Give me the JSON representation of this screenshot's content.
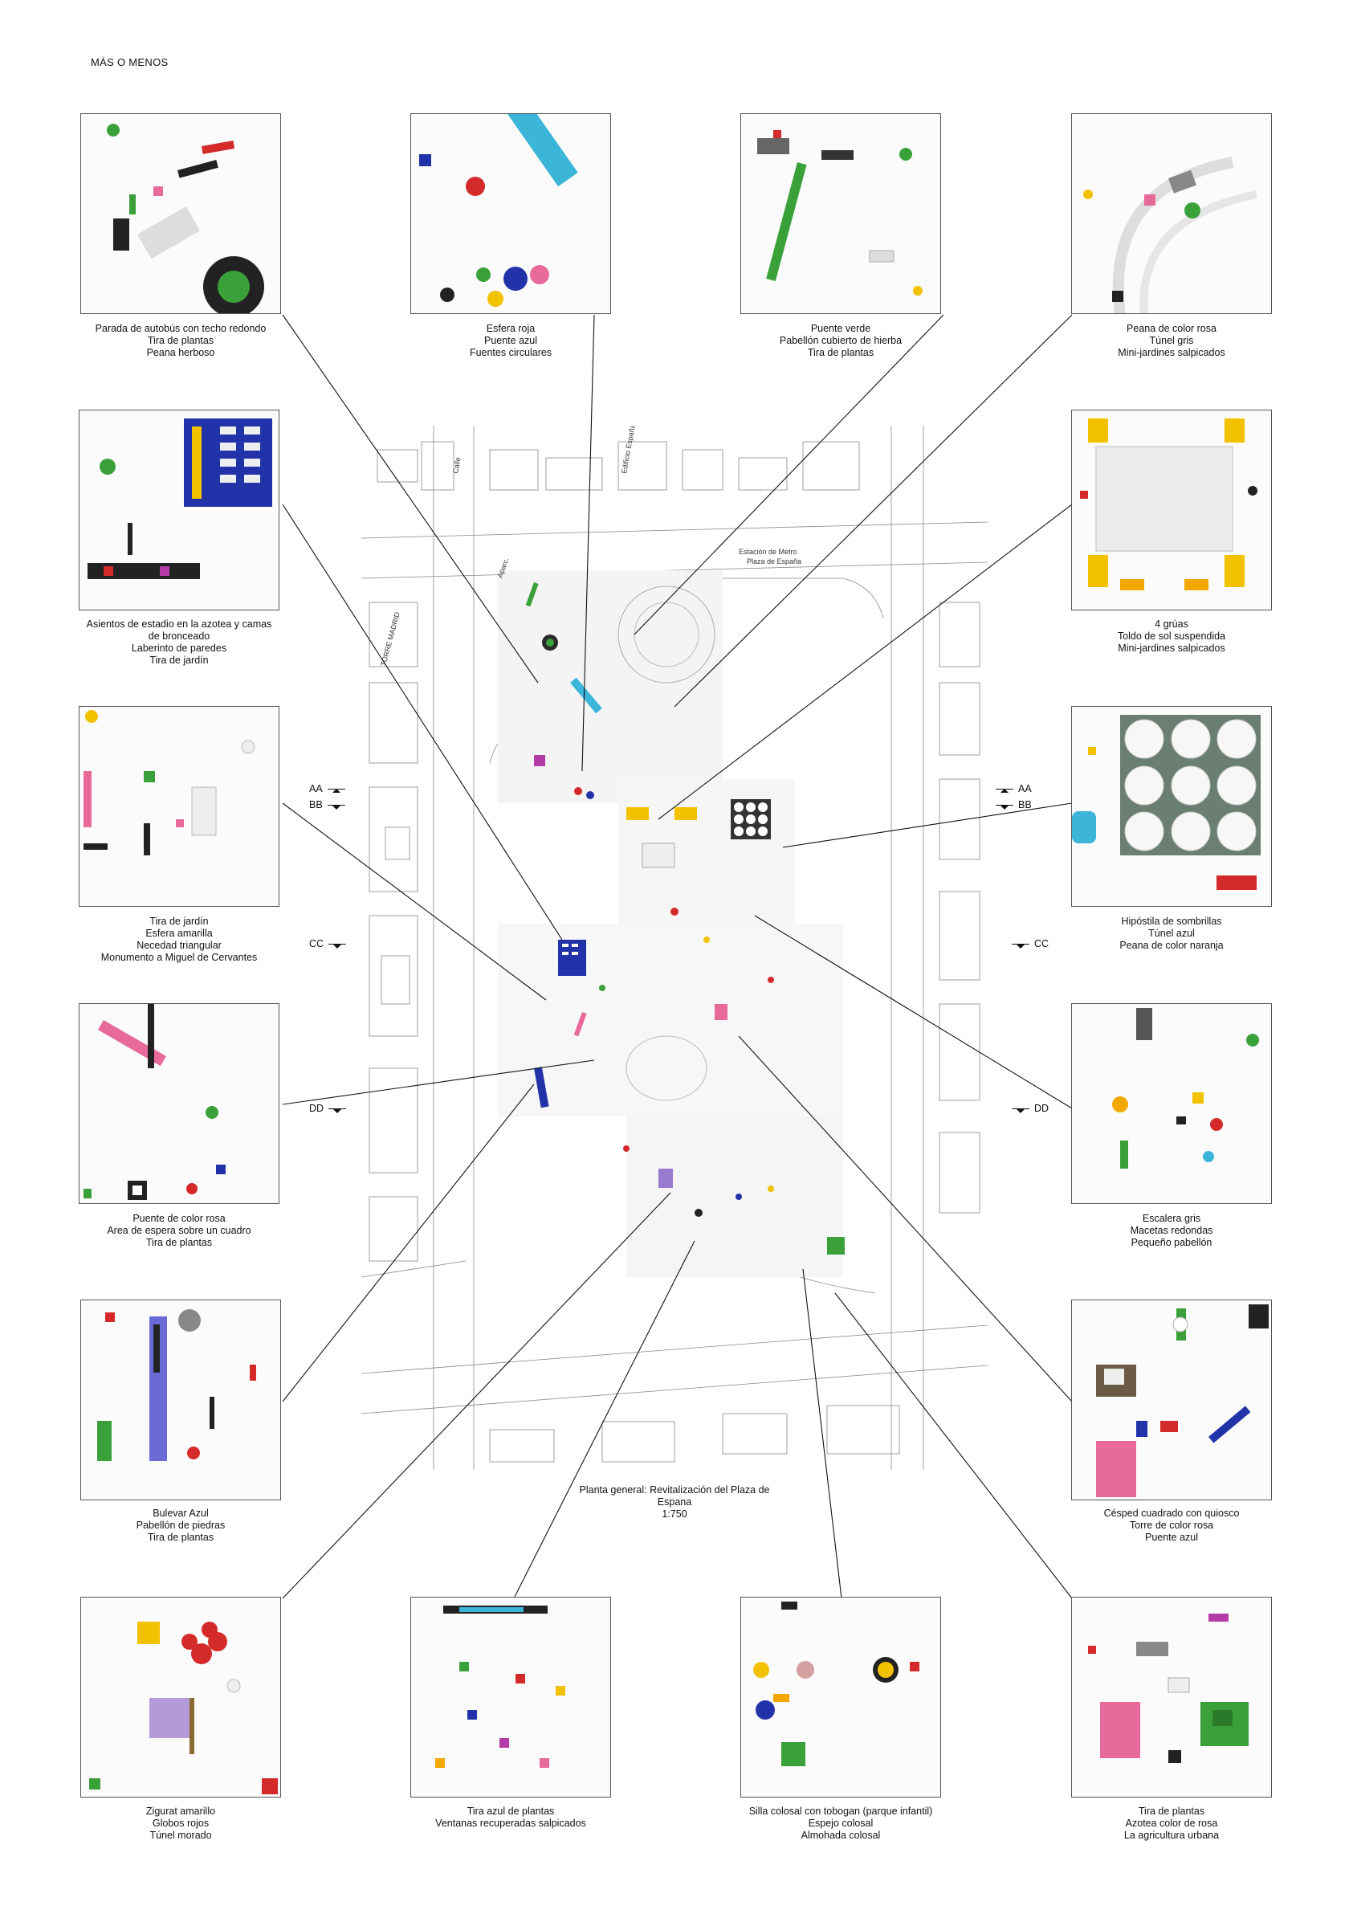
{
  "header": {
    "title": "MÁS O MENOS"
  },
  "plan": {
    "caption_lines": [
      "Planta general: Revitalización del Plaza de",
      "Espana",
      "1:750"
    ],
    "street_labels": [
      "Calle",
      "Edificio España",
      "Aparc.",
      "TORRE MADRID",
      "Estación de Metro",
      "Plaza de España"
    ]
  },
  "sections": [
    {
      "label": "AA",
      "dir": "up"
    },
    {
      "label": "BB",
      "dir": "down"
    },
    {
      "label": "CC",
      "dir": "down"
    },
    {
      "label": "DD",
      "dir": "down"
    }
  ],
  "panels": [
    {
      "id": "p1",
      "lines": [
        "Parada de autobús con techo redondo",
        "Tira de plantas",
        "Peana herboso"
      ]
    },
    {
      "id": "p2",
      "lines": [
        "Esfera roja",
        "Puente azul",
        "Fuentes circulares"
      ]
    },
    {
      "id": "p3",
      "lines": [
        "Puente verde",
        "Pabellón cubierto de hierba",
        "Tira de plantas"
      ]
    },
    {
      "id": "p4",
      "lines": [
        "Peana de color rosa",
        "Túnel gris",
        "Mini-jardines salpicados"
      ]
    },
    {
      "id": "p5",
      "lines": [
        "Asientos de estadio en la azotea y camas",
        "de bronceado",
        "Laberinto de paredes",
        "Tira de jardín"
      ]
    },
    {
      "id": "p6",
      "lines": [
        "4 grúas",
        "Toldo de sol suspendida",
        "Mini-jardines salpicados"
      ]
    },
    {
      "id": "p7",
      "lines": [
        "Tira de jardín",
        "Esfera amarilla",
        "Necedad triangular",
        "Monumento a Miguel de Cervantes"
      ]
    },
    {
      "id": "p8",
      "lines": [
        "Hipóstila de sombrillas",
        "Túnel azul",
        "Peana de color naranja"
      ]
    },
    {
      "id": "p9",
      "lines": [
        "Puente de color rosa",
        "Area de espera sobre un cuadro",
        "Tira de plantas"
      ]
    },
    {
      "id": "p10",
      "lines": [
        "Escalera gris",
        "Macetas redondas",
        "Pequeño pabellón"
      ]
    },
    {
      "id": "p11",
      "lines": [
        "Bulevar Azul",
        "Pabellón de piedras",
        "Tira de plantas"
      ]
    },
    {
      "id": "p12",
      "lines": [
        "Césped cuadrado con quiosco",
        "Torre de color rosa",
        "Puente azul"
      ]
    },
    {
      "id": "p13",
      "lines": [
        "Zigurat amarillo",
        "Globos rojos",
        "Túnel morado"
      ]
    },
    {
      "id": "p14",
      "lines": [
        "Tira azul de plantas",
        "Ventanas recuperadas salpicados"
      ]
    },
    {
      "id": "p15",
      "lines": [
        "Silla colosal con tobogan (parque infantil)",
        "Espejo colosal",
        "Almohada colosal"
      ]
    },
    {
      "id": "p16",
      "lines": [
        "Tira de plantas",
        "Azotea color de rosa",
        "La agricultura urbana"
      ]
    }
  ],
  "colors": {
    "line": "#111111",
    "frame": "#555555",
    "blue": "#2233aa",
    "green": "#3aa13a",
    "red": "#d42a2a",
    "yellow": "#f2c200",
    "pink": "#e86a9a",
    "cyan": "#3bb6d9"
  }
}
